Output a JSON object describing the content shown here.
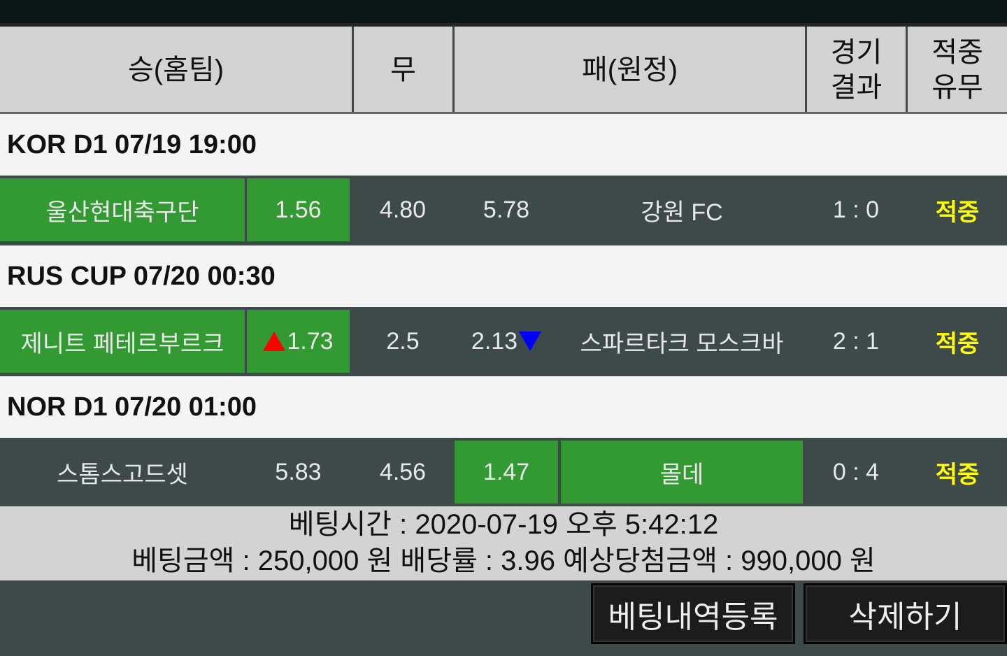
{
  "header": {
    "home": "승(홈팀)",
    "draw": "무",
    "away": "패(원정)",
    "result": "경기\n결과",
    "hit": "적중\n유무"
  },
  "matches": [
    {
      "league": "KOR D1 07/19 19:00",
      "home": "울산현대축구단",
      "home_odds": "1.56",
      "draw": "4.80",
      "away_odds": "5.78",
      "away": "강원 FC",
      "result": "1 : 0",
      "hit": "적중",
      "pick": "home"
    },
    {
      "league": "RUS CUP 07/20 00:30",
      "home": "제니트 페테르부르크",
      "home_odds": "1.73",
      "draw": "2.5",
      "away_odds": "2.13",
      "away": "스파르타크 모스크바",
      "result": "2 : 1",
      "hit": "적중",
      "pick": "home",
      "home_odds_trend": "up",
      "away_odds_trend": "down"
    },
    {
      "league": "NOR D1 07/20 01:00",
      "home": "스톰스고드셋",
      "home_odds": "5.83",
      "draw": "4.56",
      "away_odds": "1.47",
      "away": "몰데",
      "result": "0 : 4",
      "hit": "적중",
      "pick": "away"
    }
  ],
  "info": {
    "line1": "베팅시간 : 2020-07-19 오후 5:42:12",
    "line2": "베팅금액 : 250,000 원 배당률 : 3.96 예상당첨금액 : 990,000 원"
  },
  "buttons": {
    "register": "베팅내역등록",
    "delete": "삭제하기"
  },
  "colors": {
    "selected": "#339933",
    "hit": "#ffff00",
    "odds_up": "#ff0000",
    "odds_down": "#0000ff"
  }
}
